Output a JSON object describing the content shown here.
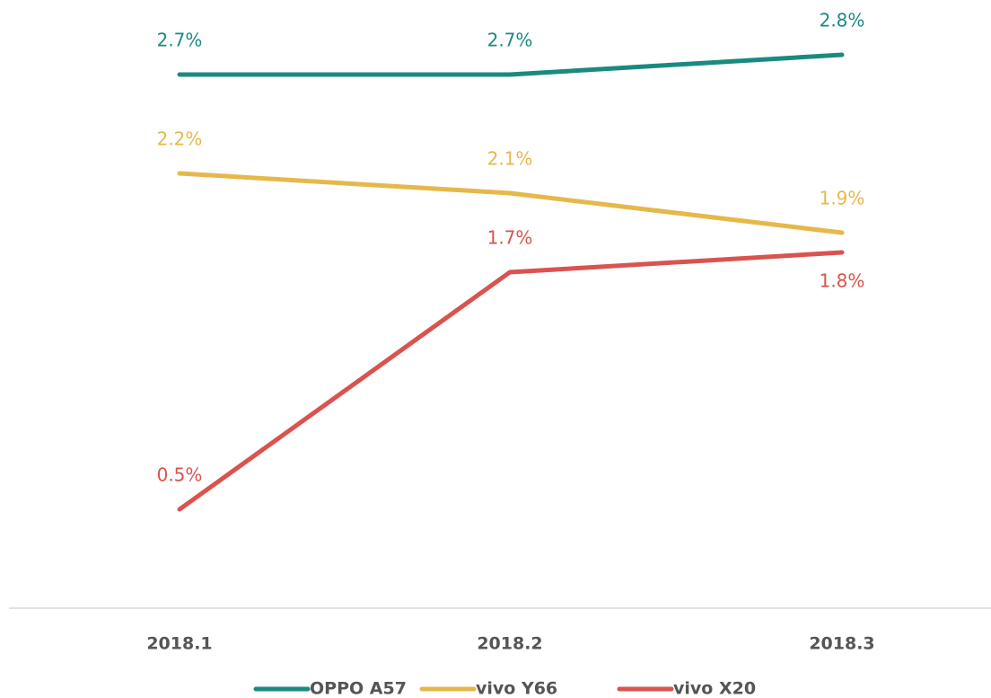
{
  "chart_data": {
    "type": "line",
    "categories": [
      "2018.1",
      "2018.2",
      "2018.3"
    ],
    "series": [
      {
        "name": "OPPO A57",
        "color": "#1a8a80",
        "values": [
          2.7,
          2.7,
          2.8
        ],
        "value_labels": [
          "2.7%",
          "2.7%",
          "2.8%"
        ]
      },
      {
        "name": "vivo Y66",
        "color": "#e6b84a",
        "values": [
          2.2,
          2.1,
          1.9
        ],
        "value_labels": [
          "2.2%",
          "2.1%",
          "1.9%"
        ]
      },
      {
        "name": "vivo X20",
        "color": "#d9534f",
        "values": [
          0.5,
          1.7,
          1.8
        ],
        "value_labels": [
          "0.5%",
          "1.7%",
          "1.8%"
        ]
      }
    ],
    "ylim": [
      0,
      3
    ],
    "legend": "bottom"
  }
}
